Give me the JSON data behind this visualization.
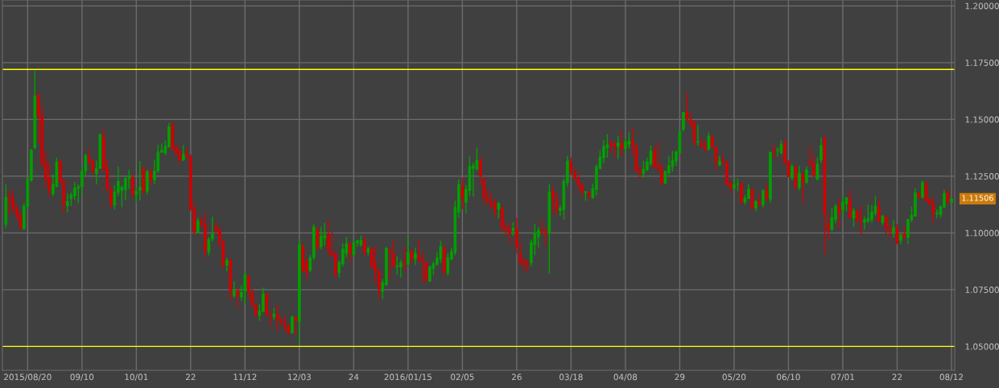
{
  "chart_data": {
    "type": "candlestick",
    "categories": [
      null,
      null,
      null,
      null,
      null,
      null,
      "2015/08/20",
      null,
      null,
      null,
      null,
      null,
      null,
      null,
      null,
      null,
      null,
      null,
      null,
      null,
      null,
      "09/10",
      null,
      null,
      null,
      null,
      null,
      null,
      null,
      null,
      null,
      null,
      null,
      null,
      null,
      null,
      "10/01",
      null,
      null,
      null,
      null,
      null,
      null,
      null,
      null,
      null,
      null,
      null,
      null,
      null,
      null,
      "22",
      null,
      null,
      null,
      null,
      null,
      null,
      null,
      null,
      null,
      null,
      null,
      null,
      null,
      null,
      "11/12",
      null,
      null,
      null,
      null,
      null,
      null,
      null,
      null,
      null,
      null,
      null,
      null,
      null,
      null,
      "12/03",
      null,
      null,
      null,
      null,
      null,
      null,
      null,
      null,
      null,
      null,
      null,
      null,
      null,
      null,
      "24",
      null,
      null,
      null,
      null,
      null,
      null,
      null,
      null,
      null,
      null,
      null,
      null,
      null,
      null,
      "2016/01/15",
      null,
      null,
      null,
      null,
      null,
      null,
      null,
      null,
      null,
      null,
      null,
      null,
      null,
      null,
      "02/05",
      null,
      null,
      null,
      null,
      null,
      null,
      null,
      null,
      null,
      null,
      null,
      null,
      null,
      null,
      "26",
      null,
      null,
      null,
      null,
      null,
      null,
      null,
      null,
      null,
      null,
      null,
      null,
      null,
      null,
      "03/18",
      null,
      null,
      null,
      null,
      null,
      null,
      null,
      null,
      null,
      null,
      null,
      null,
      null,
      null,
      "04/08",
      null,
      null,
      null,
      null,
      null,
      null,
      null,
      null,
      null,
      null,
      null,
      null,
      null,
      null,
      "29",
      null,
      null,
      null,
      null,
      null,
      null,
      null,
      null,
      null,
      null,
      null,
      null,
      null,
      null,
      "05/20",
      null,
      null,
      null,
      null,
      null,
      null,
      null,
      null,
      null,
      null,
      null,
      null,
      null,
      null,
      "06/10",
      null,
      null,
      null,
      null,
      null,
      null,
      null,
      null,
      null,
      null,
      null,
      null,
      null,
      null,
      "07/01",
      null,
      null,
      null,
      null,
      null,
      null,
      null,
      null,
      null,
      null,
      null,
      null,
      null,
      null,
      "22",
      null,
      null,
      null,
      null,
      null,
      null,
      null,
      null,
      null,
      null,
      null,
      null,
      null,
      null,
      "08/12"
    ],
    "ohlc": [
      [
        1.1037,
        1.1213,
        1.1021,
        1.1157
      ],
      [
        1.116,
        1.1187,
        1.1078,
        1.1151
      ],
      [
        1.1151,
        1.1187,
        1.1095,
        1.1104
      ],
      [
        1.1112,
        1.1118,
        1.1057,
        1.1072
      ],
      [
        1.1077,
        1.109,
        1.1013,
        1.1027
      ],
      [
        1.1019,
        1.1132,
        1.1012,
        1.1118
      ],
      [
        1.1116,
        1.124,
        1.1104,
        1.124
      ],
      [
        1.1232,
        1.137,
        1.1226,
        1.1366
      ],
      [
        1.1374,
        1.1713,
        1.1369,
        1.1604
      ],
      [
        1.161,
        1.161,
        1.1391,
        1.1512
      ],
      [
        1.1518,
        1.1559,
        1.129,
        1.1305
      ],
      [
        1.1311,
        1.1361,
        1.1199,
        1.1234
      ],
      [
        1.1242,
        1.1308,
        1.1157,
        1.1187
      ],
      [
        1.1172,
        1.1258,
        1.1163,
        1.1214
      ],
      [
        1.1204,
        1.1331,
        1.1201,
        1.1313
      ],
      [
        1.1317,
        1.1317,
        1.1216,
        1.1222
      ],
      [
        1.1226,
        1.124,
        1.1086,
        1.1122
      ],
      [
        1.1119,
        1.1173,
        1.109,
        1.1139
      ],
      [
        1.1151,
        1.1177,
        1.1119,
        1.1168
      ],
      [
        1.1163,
        1.1226,
        1.1145,
        1.1199
      ],
      [
        1.1196,
        1.1216,
        1.1131,
        1.1204
      ],
      [
        1.1204,
        1.1293,
        1.1169,
        1.1273
      ],
      [
        1.1273,
        1.1349,
        1.1252,
        1.134
      ],
      [
        1.1332,
        1.1372,
        1.1299,
        1.1314
      ],
      [
        1.1317,
        1.1323,
        1.1258,
        1.127
      ],
      [
        1.1261,
        1.1319,
        1.1213,
        1.1284
      ],
      [
        1.1285,
        1.1439,
        1.1281,
        1.1433
      ],
      [
        1.1426,
        1.1459,
        1.1272,
        1.1279
      ],
      [
        1.1285,
        1.1326,
        1.1187,
        1.119
      ],
      [
        1.119,
        1.1204,
        1.111,
        1.1125
      ],
      [
        1.1122,
        1.121,
        1.1104,
        1.1181
      ],
      [
        1.1178,
        1.1293,
        1.1163,
        1.1228
      ],
      [
        1.1187,
        1.121,
        1.1113,
        1.1202
      ],
      [
        1.119,
        1.1246,
        1.1145,
        1.124
      ],
      [
        1.124,
        1.1279,
        1.1193,
        1.1252
      ],
      [
        1.1246,
        1.1258,
        1.1155,
        1.1171
      ],
      [
        1.1169,
        1.1196,
        1.1131,
        1.1184
      ],
      [
        1.1187,
        1.1317,
        1.1143,
        1.1202
      ],
      [
        1.1287,
        1.1287,
        1.1171,
        1.1183
      ],
      [
        1.1183,
        1.1278,
        1.1169,
        1.127
      ],
      [
        1.127,
        1.1281,
        1.121,
        1.1234
      ],
      [
        1.1234,
        1.1323,
        1.1213,
        1.1273
      ],
      [
        1.1273,
        1.1388,
        1.1264,
        1.1356
      ],
      [
        1.1356,
        1.1393,
        1.1352,
        1.1364
      ],
      [
        1.1352,
        1.1408,
        1.1343,
        1.1382
      ],
      [
        1.1378,
        1.1485,
        1.1376,
        1.1468
      ],
      [
        1.1475,
        1.1494,
        1.1366,
        1.137
      ],
      [
        1.1376,
        1.139,
        1.1334,
        1.1352
      ],
      [
        1.1358,
        1.1374,
        1.1305,
        1.132
      ],
      [
        1.132,
        1.1388,
        1.1317,
        1.1346
      ],
      [
        1.1346,
        1.1376,
        1.1329,
        1.1335
      ],
      [
        1.1338,
        1.1346,
        1.1098,
        1.1104
      ],
      [
        1.1108,
        1.1137,
        1.0992,
        1.1004
      ],
      [
        1.1001,
        1.1066,
        1.0998,
        1.1054
      ],
      [
        1.1051,
        1.1074,
        1.1027,
        1.1035
      ],
      [
        1.1039,
        1.1092,
        1.0894,
        1.0917
      ],
      [
        1.0917,
        1.0982,
        1.0901,
        1.0972
      ],
      [
        1.0974,
        1.1071,
        1.0962,
        1.0995
      ],
      [
        1.103,
        1.1047,
        1.0995,
        1.1009
      ],
      [
        1.1012,
        1.1027,
        1.0933,
        1.096
      ],
      [
        1.0962,
        1.0968,
        1.0842,
        1.0858
      ],
      [
        1.0858,
        1.0891,
        1.083,
        1.0879
      ],
      [
        1.0882,
        1.0889,
        1.0702,
        1.0738
      ],
      [
        1.0723,
        1.0787,
        1.0714,
        1.0747
      ],
      [
        1.0745,
        1.0759,
        1.0673,
        1.0723
      ],
      [
        1.0717,
        1.077,
        1.0702,
        1.0738
      ],
      [
        1.0743,
        1.0826,
        1.069,
        1.0817
      ],
      [
        1.0808,
        1.0817,
        1.0708,
        1.0746
      ],
      [
        1.0738,
        1.0755,
        1.0673,
        1.0682
      ],
      [
        1.0682,
        1.069,
        1.0625,
        1.0641
      ],
      [
        1.0637,
        1.0688,
        1.0613,
        1.0657
      ],
      [
        1.0655,
        1.0759,
        1.0649,
        1.0732
      ],
      [
        1.0732,
        1.0732,
        1.0637,
        1.0639
      ],
      [
        1.0637,
        1.0653,
        1.059,
        1.0631
      ],
      [
        1.0631,
        1.0669,
        1.0619,
        1.0641
      ],
      [
        1.0643,
        1.0684,
        1.0566,
        1.0619
      ],
      [
        1.0617,
        1.0625,
        1.0598,
        1.0605
      ],
      [
        1.0602,
        1.0635,
        1.0566,
        1.059
      ],
      [
        1.059,
        1.0596,
        1.0554,
        1.0558
      ],
      [
        1.056,
        1.0635,
        1.0557,
        1.0631
      ],
      [
        1.0629,
        1.0631,
        1.0549,
        1.0616
      ],
      [
        1.061,
        1.0974,
        1.0513,
        1.0948
      ],
      [
        1.0939,
        1.0956,
        1.0826,
        1.0835
      ],
      [
        1.0872,
        1.089,
        1.0797,
        1.0826
      ],
      [
        1.0835,
        1.0903,
        1.0826,
        1.0891
      ],
      [
        1.0891,
        1.1039,
        1.0879,
        1.1027
      ],
      [
        1.1019,
        1.1019,
        1.0924,
        1.0936
      ],
      [
        1.0939,
        1.1027,
        1.0927,
        1.0986
      ],
      [
        1.0976,
        1.1045,
        1.0944,
        1.0992
      ],
      [
        1.0992,
        1.1057,
        1.0903,
        1.0927
      ],
      [
        1.0918,
        1.1004,
        1.0891,
        1.0901
      ],
      [
        1.0909,
        1.0909,
        1.0803,
        1.0818
      ],
      [
        1.0826,
        1.0879,
        1.0803,
        1.087
      ],
      [
        1.0863,
        1.0954,
        1.0852,
        1.093
      ],
      [
        1.0909,
        1.0983,
        1.0894,
        1.0953
      ],
      [
        1.095,
        1.0962,
        1.0868,
        1.0909
      ],
      [
        1.0903,
        1.0965,
        1.0897,
        1.0959
      ],
      [
        1.0956,
        1.0968,
        1.0939,
        1.0966
      ],
      [
        1.0948,
        1.0989,
        1.0939,
        1.0968
      ],
      [
        1.0965,
        1.0986,
        1.0901,
        1.0915
      ],
      [
        1.0915,
        1.0938,
        1.0901,
        1.093
      ],
      [
        1.093,
        1.0936,
        1.0846,
        1.085
      ],
      [
        1.0865,
        1.0942,
        1.0779,
        1.083
      ],
      [
        1.083,
        1.0838,
        1.0708,
        1.0752
      ],
      [
        1.0743,
        1.0797,
        1.0708,
        1.0782
      ],
      [
        1.0771,
        1.0939,
        1.0767,
        1.0932
      ],
      [
        1.0927,
        1.0929,
        1.0797,
        1.0915
      ],
      [
        1.0909,
        1.0968,
        1.0846,
        1.0853
      ],
      [
        1.085,
        1.0897,
        1.0814,
        1.0856
      ],
      [
        1.085,
        1.0882,
        1.0803,
        1.087
      ],
      [
        1.0874,
        1.0939,
        1.0832,
        1.0865
      ],
      [
        1.0862,
        1.0986,
        1.0856,
        1.0915
      ],
      [
        1.0918,
        1.0927,
        1.0865,
        1.0885
      ],
      [
        1.0885,
        1.0936,
        1.0858,
        1.0909
      ],
      [
        1.0901,
        1.0971,
        1.087,
        1.0885
      ],
      [
        1.0885,
        1.0917,
        1.0779,
        1.0874
      ],
      [
        1.087,
        1.087,
        1.0785,
        1.0791
      ],
      [
        1.0787,
        1.0856,
        1.0785,
        1.085
      ],
      [
        1.0844,
        1.0874,
        1.0814,
        1.0865
      ],
      [
        1.0861,
        1.0915,
        1.0856,
        1.0891
      ],
      [
        1.0885,
        1.0965,
        1.0868,
        1.0941
      ],
      [
        1.0936,
        1.0942,
        1.0809,
        1.083
      ],
      [
        1.0824,
        1.0909,
        1.0811,
        1.0891
      ],
      [
        1.0885,
        1.0936,
        1.0879,
        1.0918
      ],
      [
        1.0915,
        1.1142,
        1.0901,
        1.1113
      ],
      [
        1.1092,
        1.1236,
        1.1066,
        1.1213
      ],
      [
        1.1204,
        1.1243,
        1.1104,
        1.1151
      ],
      [
        1.1134,
        1.121,
        1.1086,
        1.1193
      ],
      [
        1.1187,
        1.1337,
        1.1163,
        1.1293
      ],
      [
        1.1284,
        1.1311,
        1.116,
        1.1296
      ],
      [
        1.1281,
        1.1376,
        1.1275,
        1.132
      ],
      [
        1.132,
        1.1334,
        1.1214,
        1.1252
      ],
      [
        1.1232,
        1.1248,
        1.113,
        1.1155
      ],
      [
        1.1155,
        1.1189,
        1.1122,
        1.1142
      ],
      [
        1.1139,
        1.1175,
        1.1104,
        1.1122
      ],
      [
        1.1128,
        1.1149,
        1.1069,
        1.1102
      ],
      [
        1.1104,
        1.1137,
        1.1063,
        1.113
      ],
      [
        1.1106,
        1.1122,
        1.1004,
        1.1024
      ],
      [
        1.1027,
        1.1047,
        1.0989,
        1.1013
      ],
      [
        1.1015,
        1.1043,
        1.0956,
        1.1
      ],
      [
        1.1009,
        1.1047,
        1.0986,
        1.1021
      ],
      [
        1.1019,
        1.1066,
        1.0909,
        1.0936
      ],
      [
        1.0909,
        1.096,
        1.0858,
        1.0868
      ],
      [
        1.0877,
        1.0891,
        1.0834,
        1.0862
      ],
      [
        1.0868,
        1.0879,
        1.0826,
        1.0858
      ],
      [
        1.0868,
        1.0971,
        1.0853,
        1.0959
      ],
      [
        1.0948,
        1.1039,
        1.0901,
        1.1
      ],
      [
        1.0983,
        1.1026,
        1.0936,
        1.1012
      ],
      [
        1.1009,
        1.1054,
        1.0998,
        1.1
      ],
      [
        1.1007,
        1.1027,
        1.0944,
        1.0998
      ],
      [
        1.0998,
        1.1216,
        1.082,
        1.1181
      ],
      [
        1.1181,
        1.1204,
        1.108,
        1.1151
      ],
      [
        1.1142,
        1.1175,
        1.1078,
        1.1102
      ],
      [
        1.1098,
        1.1122,
        1.1074,
        1.1108
      ],
      [
        1.1102,
        1.124,
        1.1059,
        1.1228
      ],
      [
        1.1222,
        1.134,
        1.1204,
        1.1317
      ],
      [
        1.1313,
        1.1334,
        1.1255,
        1.127
      ],
      [
        1.1267,
        1.1281,
        1.1234,
        1.124
      ],
      [
        1.124,
        1.126,
        1.1187,
        1.1213
      ],
      [
        1.1213,
        1.1222,
        1.1157,
        1.1181
      ],
      [
        1.1178,
        1.1184,
        1.1142,
        1.1182
      ],
      [
        1.1175,
        1.1181,
        1.1151,
        1.1163
      ],
      [
        1.1155,
        1.1216,
        1.1151,
        1.1196
      ],
      [
        1.119,
        1.1303,
        1.1165,
        1.1291
      ],
      [
        1.1284,
        1.1362,
        1.1279,
        1.1335
      ],
      [
        1.1331,
        1.1411,
        1.1307,
        1.1381
      ],
      [
        1.1374,
        1.1435,
        1.1332,
        1.1388
      ],
      [
        1.1397,
        1.1411,
        1.1355,
        1.1388
      ],
      [
        1.1392,
        1.14,
        1.1334,
        1.1382
      ],
      [
        1.1381,
        1.1429,
        1.1326,
        1.1397
      ],
      [
        1.1397,
        1.1453,
        1.1338,
        1.1369
      ],
      [
        1.137,
        1.1417,
        1.1352,
        1.1402
      ],
      [
        1.1391,
        1.1444,
        1.1374,
        1.1405
      ],
      [
        1.1405,
        1.1465,
        1.1343,
        1.1385
      ],
      [
        1.1384,
        1.139,
        1.127,
        1.1272
      ],
      [
        1.1275,
        1.1296,
        1.1234,
        1.1264
      ],
      [
        1.126,
        1.1317,
        1.1243,
        1.1281
      ],
      [
        1.1278,
        1.1331,
        1.1272,
        1.1313
      ],
      [
        1.1305,
        1.1384,
        1.1296,
        1.1361
      ],
      [
        1.1361,
        1.1384,
        1.1287,
        1.1291
      ],
      [
        1.1299,
        1.1397,
        1.127,
        1.1284
      ],
      [
        1.1284,
        1.1305,
        1.1216,
        1.1219
      ],
      [
        1.1219,
        1.1275,
        1.1216,
        1.1272
      ],
      [
        1.1264,
        1.1337,
        1.1255,
        1.1296
      ],
      [
        1.1293,
        1.1361,
        1.127,
        1.132
      ],
      [
        1.1317,
        1.1364,
        1.1296,
        1.1356
      ],
      [
        1.135,
        1.1453,
        1.1346,
        1.1447
      ],
      [
        1.1456,
        1.1532,
        1.1447,
        1.1532
      ],
      [
        1.153,
        1.1615,
        1.1494,
        1.15
      ],
      [
        1.1498,
        1.153,
        1.1462,
        1.1482
      ],
      [
        1.1488,
        1.1494,
        1.1385,
        1.1402
      ],
      [
        1.14,
        1.1476,
        1.1385,
        1.1403
      ],
      [
        1.1397,
        1.1421,
        1.1374,
        1.1381
      ],
      [
        1.1382,
        1.1408,
        1.1358,
        1.137
      ],
      [
        1.1368,
        1.1444,
        1.1364,
        1.1427
      ],
      [
        1.1426,
        1.1429,
        1.1374,
        1.1378
      ],
      [
        1.1376,
        1.1382,
        1.1279,
        1.1311
      ],
      [
        1.1299,
        1.134,
        1.1295,
        1.1317
      ],
      [
        1.1317,
        1.1346,
        1.1299,
        1.1311
      ],
      [
        1.1311,
        1.1317,
        1.121,
        1.1213
      ],
      [
        1.122,
        1.1228,
        1.1175,
        1.1199
      ],
      [
        1.1196,
        1.1234,
        1.1196,
        1.1213
      ],
      [
        1.1214,
        1.124,
        1.1184,
        1.1216
      ],
      [
        1.122,
        1.1222,
        1.1128,
        1.1134
      ],
      [
        1.1136,
        1.1167,
        1.1124,
        1.1154
      ],
      [
        1.1151,
        1.1216,
        1.1149,
        1.1193
      ],
      [
        1.1193,
        1.1196,
        1.1104,
        1.1108
      ],
      [
        1.1108,
        1.1145,
        1.1095,
        1.1139
      ],
      [
        1.1139,
        1.1173,
        1.1118,
        1.1125
      ],
      [
        1.1124,
        1.1193,
        1.1112,
        1.1187
      ],
      [
        1.1187,
        1.1219,
        1.1145,
        1.1149
      ],
      [
        1.1148,
        1.1358,
        1.1134,
        1.1356
      ],
      [
        1.1366,
        1.139,
        1.1326,
        1.1358
      ],
      [
        1.1363,
        1.1378,
        1.1337,
        1.1365
      ],
      [
        1.1352,
        1.1408,
        1.1346,
        1.1391
      ],
      [
        1.1396,
        1.1414,
        1.1305,
        1.1309
      ],
      [
        1.1314,
        1.132,
        1.1246,
        1.1248
      ],
      [
        1.1243,
        1.1303,
        1.1232,
        1.1293
      ],
      [
        1.1293,
        1.1297,
        1.1189,
        1.1204
      ],
      [
        1.1199,
        1.1296,
        1.1187,
        1.1264
      ],
      [
        1.126,
        1.1264,
        1.1128,
        1.1222
      ],
      [
        1.1222,
        1.1293,
        1.1216,
        1.1278
      ],
      [
        1.1317,
        1.1382,
        1.1299,
        1.1303
      ],
      [
        1.1305,
        1.1346,
        1.1246,
        1.1252
      ],
      [
        1.1236,
        1.1334,
        1.1232,
        1.1303
      ],
      [
        1.132,
        1.1421,
        1.1307,
        1.1385
      ],
      [
        1.1421,
        1.1425,
        1.0905,
        1.1083
      ],
      [
        1.1035,
        1.108,
        1.0968,
        1.1015
      ],
      [
        1.1015,
        1.111,
        1.1007,
        1.1069
      ],
      [
        1.1059,
        1.1128,
        1.1045,
        1.1118
      ],
      [
        1.1118,
        1.1151,
        1.1021,
        1.1086
      ],
      [
        1.1102,
        1.1163,
        1.1071,
        1.1136
      ],
      [
        1.1128,
        1.1157,
        1.1095,
        1.1155
      ],
      [
        1.1151,
        1.1187,
        1.1063,
        1.1069
      ],
      [
        1.1065,
        1.111,
        1.1027,
        1.1098
      ],
      [
        1.1098,
        1.1104,
        1.1045,
        1.1057
      ],
      [
        1.1059,
        1.1118,
        1.0992,
        1.1051
      ],
      [
        1.1047,
        1.1071,
        1.1015,
        1.1059
      ],
      [
        1.1051,
        1.1125,
        1.1045,
        1.1063
      ],
      [
        1.1059,
        1.1122,
        1.1045,
        1.1092
      ],
      [
        1.1086,
        1.1163,
        1.1074,
        1.1118
      ],
      [
        1.1116,
        1.1148,
        1.1047,
        1.1051
      ],
      [
        1.1045,
        1.108,
        1.1035,
        1.1074
      ],
      [
        1.1071,
        1.1074,
        1.0995,
        1.1021
      ],
      [
        1.1021,
        1.1039,
        1.0976,
        1.1012
      ],
      [
        1.1004,
        1.1057,
        1.098,
        1.1024
      ],
      [
        1.1021,
        1.1039,
        1.095,
        1.0956
      ],
      [
        1.0966,
        1.0995,
        1.095,
        1.0992
      ],
      [
        1.0992,
        1.1027,
        1.0976,
        1.098
      ],
      [
        1.098,
        1.1063,
        1.095,
        1.1059
      ],
      [
        1.1059,
        1.1116,
        1.1047,
        1.1078
      ],
      [
        1.1074,
        1.1196,
        1.1071,
        1.1177
      ],
      [
        1.1177,
        1.1178,
        1.1155,
        1.1157
      ],
      [
        1.1157,
        1.1232,
        1.1151,
        1.1222
      ],
      [
        1.122,
        1.1222,
        1.1137,
        1.1139
      ],
      [
        1.1145,
        1.1157,
        1.1118,
        1.1128
      ],
      [
        1.1128,
        1.1161,
        1.1043,
        1.1084
      ],
      [
        1.1084,
        1.1104,
        1.1066,
        1.109
      ],
      [
        1.108,
        1.1122,
        1.1066,
        1.1116
      ],
      [
        1.1113,
        1.1189,
        1.111,
        1.1175
      ],
      [
        1.1177,
        1.1193,
        1.113,
        1.1134
      ],
      [
        1.1134,
        1.1154,
        1.1128,
        1.1151
      ]
    ],
    "colors": [
      "#00a000",
      "#d40000",
      "#d40000",
      "#d40000",
      "#d40000",
      "#00a000",
      "#00a000",
      "#00a000",
      "#00a000",
      "#d40000",
      "#d40000",
      "#d40000",
      "#d40000",
      "#00a000",
      "#00a000",
      "#d40000",
      "#d40000",
      "#00a000",
      "#00a000",
      "#00a000",
      "#00a000",
      "#00a000",
      "#00a000",
      "#d40000",
      "#d40000",
      "#00a000",
      "#00a000",
      "#d40000",
      "#d40000",
      "#d40000",
      "#00a000",
      "#00a000",
      "#00a000",
      "#00a000",
      "#00a000",
      "#d40000",
      "#00a000",
      "#00a000",
      "#d40000",
      "#00a000",
      "#d40000",
      "#00a000",
      "#00a000",
      "#00a000",
      "#00a000",
      "#00a000",
      "#d40000",
      "#d40000",
      "#d40000",
      "#00a000",
      "#d40000",
      "#d40000",
      "#d40000",
      "#00a000",
      "#d40000",
      "#d40000",
      "#00a000",
      "#00a000",
      "#d40000",
      "#d40000",
      "#d40000",
      "#00a000",
      "#d40000",
      "#00a000",
      "#d40000",
      "#00a000",
      "#00a000",
      "#d40000",
      "#d40000",
      "#d40000",
      "#00a000",
      "#00a000",
      "#d40000",
      "#d40000",
      "#00a000",
      "#d40000",
      "#d40000",
      "#d40000",
      "#d40000",
      "#00a000",
      "#d40000",
      "#00a000",
      "#d40000",
      "#d40000",
      "#00a000",
      "#00a000",
      "#d40000",
      "#00a000",
      "#00a000",
      "#d40000",
      "#d40000",
      "#d40000",
      "#00a000",
      "#00a000",
      "#00a000",
      "#d40000",
      "#00a000",
      "#00a000",
      "#00a000",
      "#d40000",
      "#00a000",
      "#d40000",
      "#d40000",
      "#d40000",
      "#00a000",
      "#00a000",
      "#d40000",
      "#d40000",
      "#00a000",
      "#00a000",
      "#d40000",
      "#00a000",
      "#d40000",
      "#00a000",
      "#d40000",
      "#d40000",
      "#d40000",
      "#00a000",
      "#00a000",
      "#00a000",
      "#00a000",
      "#d40000",
      "#00a000",
      "#00a000",
      "#00a000",
      "#00a000",
      "#d40000",
      "#00a000",
      "#00a000",
      "#00a000",
      "#00a000",
      "#d40000",
      "#d40000",
      "#d40000",
      "#d40000",
      "#d40000",
      "#00a000",
      "#d40000",
      "#d40000",
      "#d40000",
      "#00a000",
      "#d40000",
      "#d40000",
      "#d40000",
      "#d40000",
      "#00a000",
      "#00a000",
      "#00a000",
      "#d40000",
      "#d40000",
      "#00a000",
      "#d40000",
      "#d40000",
      "#00a000",
      "#00a000",
      "#00a000",
      "#d40000",
      "#d40000",
      "#d40000",
      "#d40000",
      "#00a000",
      "#d40000",
      "#00a000",
      "#00a000",
      "#00a000",
      "#00a000",
      "#00a000",
      "#d40000",
      "#d40000",
      "#00a000",
      "#d40000",
      "#00a000",
      "#00a000",
      "#d40000",
      "#d40000",
      "#d40000",
      "#00a000",
      "#00a000",
      "#00a000",
      "#d40000",
      "#d40000",
      "#d40000",
      "#00a000",
      "#00a000",
      "#00a000",
      "#00a000",
      "#00a000",
      "#00a000",
      "#d40000",
      "#d40000",
      "#d40000",
      "#00a000",
      "#d40000",
      "#d40000",
      "#00a000",
      "#d40000",
      "#d40000",
      "#00a000",
      "#d40000",
      "#d40000",
      "#d40000",
      "#00a000",
      "#00a000",
      "#d40000",
      "#00a000",
      "#00a000",
      "#d40000",
      "#00a000",
      "#d40000",
      "#00a000",
      "#d40000",
      "#00a000",
      "#d40000",
      "#00a000",
      "#00a000",
      "#d40000",
      "#d40000",
      "#00a000",
      "#d40000",
      "#00a000",
      "#d40000",
      "#00a000",
      "#d40000",
      "#d40000",
      "#00a000",
      "#00a000",
      "#d40000",
      "#d40000",
      "#00a000",
      "#00a000",
      "#d40000",
      "#00a000",
      "#00a000",
      "#d40000",
      "#00a000",
      "#d40000",
      "#d40000",
      "#00a000",
      "#00a000",
      "#00a000",
      "#00a000",
      "#d40000",
      "#00a000",
      "#d40000",
      "#d40000",
      "#00a000",
      "#d40000",
      "#00a000",
      "#d40000",
      "#00a000",
      "#00a000",
      "#00a000",
      "#d40000",
      "#00a000",
      "#d40000",
      "#d40000",
      "#d40000",
      "#00a000",
      "#00a000",
      "#00a000",
      "#d40000",
      "#00a000"
    ],
    "ylim": [
      1.0395,
      1.2026
    ],
    "yticks": [
      {
        "value": 1.05,
        "label": "1.05000"
      },
      {
        "value": 1.075,
        "label": "1.07500"
      },
      {
        "value": 1.1,
        "label": "1.10000"
      },
      {
        "value": 1.125,
        "label": "1.12500"
      },
      {
        "value": 1.15,
        "label": "1.15000"
      },
      {
        "value": 1.175,
        "label": "1.17500"
      },
      {
        "value": 1.2,
        "label": "1.20000"
      }
    ],
    "ref_lines": [
      {
        "axis": "y",
        "value": 1.172,
        "color": "#ffff00"
      },
      {
        "axis": "y",
        "value": 1.05,
        "color": "#ffff00"
      }
    ],
    "annotations": [
      "1.11506"
    ],
    "grid": true
  }
}
